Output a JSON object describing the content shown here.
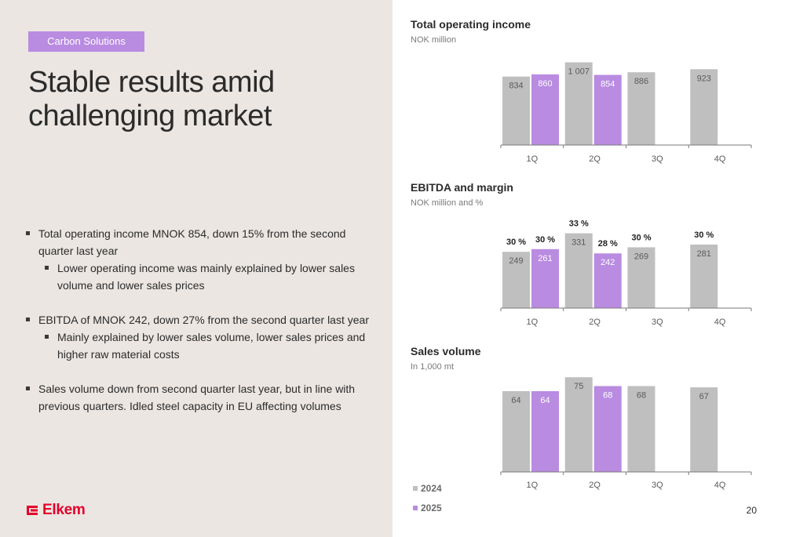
{
  "left": {
    "badge": "Carbon Solutions",
    "headline": "Stable results amid challenging market",
    "bullets": [
      {
        "level": 1,
        "text": "Total operating income MNOK 854, down 15% from the second quarter last year"
      },
      {
        "level": 2,
        "text": "Lower operating income was mainly explained by lower sales volume and lower sales prices"
      },
      {
        "level": 0,
        "text": ""
      },
      {
        "level": 1,
        "text": "EBITDA of MNOK 242, down 27% from the second quarter last year"
      },
      {
        "level": 2,
        "text": "Mainly explained by lower sales volume, lower sales prices and higher raw material costs"
      },
      {
        "level": 0,
        "text": ""
      },
      {
        "level": 1,
        "text": "Sales volume down from second quarter last year, but in line with previous quarters. Idled steel capacity in EU affecting volumes"
      }
    ]
  },
  "colors": {
    "y2024": "#bfbfbf",
    "y2025": "#b98be1",
    "text_on_2025": "#ffffff",
    "logo": "#e4002b"
  },
  "legend": {
    "y2024": "2024",
    "y2025": "2025"
  },
  "logo_text": "Elkem",
  "page_number": "20",
  "chart_data": [
    {
      "type": "bar",
      "title": "Total operating income",
      "subtitle": "NOK million",
      "categories": [
        "1Q",
        "2Q",
        "3Q",
        "4Q"
      ],
      "series": [
        {
          "name": "2024",
          "values": [
            834,
            1007,
            886,
            923
          ],
          "labels": [
            "834",
            "1 007",
            "886",
            "923"
          ]
        },
        {
          "name": "2025",
          "values": [
            860,
            854,
            null,
            null
          ],
          "labels": [
            "860",
            "854",
            "",
            ""
          ]
        }
      ],
      "ylim": [
        0,
        1050
      ]
    },
    {
      "type": "bar",
      "title": "EBITDA and margin",
      "subtitle": "NOK million and %",
      "categories": [
        "1Q",
        "2Q",
        "3Q",
        "4Q"
      ],
      "series": [
        {
          "name": "2024",
          "values": [
            249,
            331,
            269,
            281
          ],
          "labels": [
            "249",
            "331",
            "269",
            "281"
          ],
          "margins": [
            "30 %",
            "33 %",
            "30 %",
            "30 %"
          ]
        },
        {
          "name": "2025",
          "values": [
            261,
            242,
            null,
            null
          ],
          "labels": [
            "261",
            "242",
            "",
            ""
          ],
          "margins": [
            "30 %",
            "28 %",
            "",
            ""
          ]
        }
      ],
      "ylim": [
        0,
        340
      ]
    },
    {
      "type": "bar",
      "title": "Sales volume",
      "subtitle": "In 1,000 mt",
      "categories": [
        "1Q",
        "2Q",
        "3Q",
        "4Q"
      ],
      "series": [
        {
          "name": "2024",
          "values": [
            64,
            75,
            68,
            67
          ],
          "labels": [
            "64",
            "75",
            "68",
            "67"
          ]
        },
        {
          "name": "2025",
          "values": [
            64,
            68,
            null,
            null
          ],
          "labels": [
            "64",
            "68",
            "",
            ""
          ]
        }
      ],
      "ylim": [
        0,
        77
      ]
    }
  ]
}
